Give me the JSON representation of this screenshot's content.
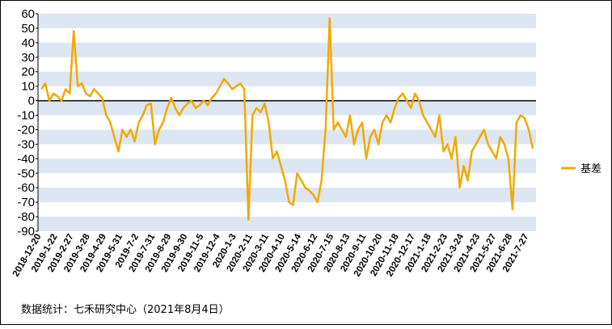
{
  "chart_data": {
    "type": "line",
    "categories": [
      "2018-12-20",
      null,
      null,
      null,
      "2019-1-22",
      null,
      null,
      null,
      "2019-2-27",
      null,
      null,
      null,
      "2019-3-28",
      null,
      null,
      null,
      "2019-4-29",
      null,
      null,
      null,
      "2019-5-31",
      null,
      null,
      null,
      "2019-7-2",
      null,
      null,
      null,
      "2019-7-31",
      null,
      null,
      null,
      "2019-8-29",
      null,
      null,
      null,
      "2019-9-30",
      null,
      null,
      null,
      "2019-11-5",
      null,
      null,
      null,
      "2019-12-4",
      null,
      null,
      null,
      "2020-1-3",
      null,
      null,
      null,
      "2020-2-11",
      null,
      null,
      null,
      "2020-3-11",
      null,
      null,
      null,
      "2020-4-10",
      null,
      null,
      null,
      "2020-5-14",
      null,
      null,
      null,
      "2020-6-12",
      null,
      null,
      null,
      "2020-7-15",
      null,
      null,
      null,
      "2020-8-13",
      null,
      null,
      null,
      "2020-9-11",
      null,
      null,
      null,
      "2020-10-20",
      null,
      null,
      null,
      "2020-11-18",
      null,
      null,
      null,
      "2020-12-17",
      null,
      null,
      null,
      "2021-1-18",
      null,
      null,
      null,
      "2021-2-23",
      null,
      null,
      null,
      "2021-3-24",
      null,
      null,
      null,
      "2021-4-23",
      null,
      null,
      null,
      "2021-5-27",
      null,
      null,
      null,
      "2021-6-28",
      null,
      null,
      null,
      "2021-7-27",
      null
    ],
    "series": [
      {
        "name": "基差",
        "color": "#f2a900",
        "values": [
          8,
          12,
          0,
          5,
          3,
          0,
          8,
          5,
          48,
          10,
          12,
          5,
          3,
          8,
          5,
          2,
          -10,
          -15,
          -25,
          -35,
          -20,
          -25,
          -20,
          -28,
          -15,
          -10,
          -3,
          -2,
          -30,
          -20,
          -15,
          -5,
          2,
          -5,
          -10,
          -5,
          -2,
          0,
          -5,
          -3,
          0,
          -3,
          2,
          5,
          10,
          15,
          12,
          8,
          10,
          12,
          8,
          -82,
          -10,
          -5,
          -8,
          -2,
          -15,
          -40,
          -35,
          -45,
          -55,
          -70,
          -72,
          -50,
          -55,
          -60,
          -62,
          -65,
          -70,
          -55,
          -20,
          57,
          -20,
          -15,
          -20,
          -25,
          -10,
          -30,
          -20,
          -15,
          -40,
          -25,
          -20,
          -30,
          -15,
          -10,
          -15,
          -5,
          2,
          5,
          0,
          -5,
          5,
          0,
          -10,
          -15,
          -20,
          -25,
          -10,
          -35,
          -30,
          -40,
          -25,
          -60,
          -45,
          -55,
          -35,
          -30,
          -25,
          -20,
          -30,
          -35,
          -40,
          -25,
          -30,
          -40,
          -75,
          -15,
          -10,
          -12,
          -20,
          -33
        ]
      }
    ],
    "ylim": [
      -90,
      60
    ],
    "yticks": [
      -90,
      -80,
      -70,
      -60,
      -50,
      -40,
      -30,
      -20,
      -10,
      0,
      10,
      20,
      30,
      40,
      50,
      60
    ],
    "grid": true,
    "band_color": "#dce6f2",
    "zero_line_color": "#000000",
    "legend": "right",
    "annotation": "数据统计：七禾研究中心（2021年8月4日）"
  }
}
